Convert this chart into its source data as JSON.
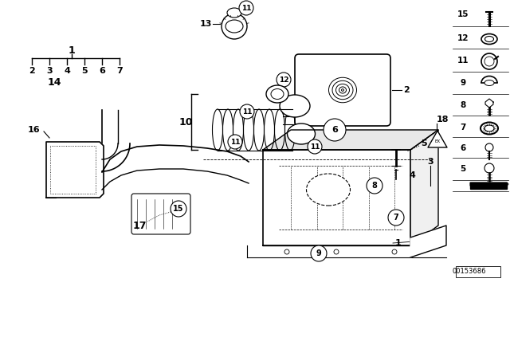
{
  "bg_color": "#ffffff",
  "line_color": "#000000",
  "text_color": "#000000",
  "watermark": "00153686",
  "tree_root": "1",
  "tree_children": [
    "2",
    "3",
    "4",
    "5",
    "6",
    "7"
  ],
  "right_panel_labels": [
    "15",
    "12",
    "11",
    "9",
    "8",
    "7",
    "6",
    "5"
  ],
  "labels_plain": [
    "1",
    "2",
    "3",
    "4",
    "5",
    "13",
    "14",
    "18",
    "10",
    "16",
    "17"
  ],
  "labels_circle": [
    "6",
    "7",
    "8",
    "9",
    "11",
    "12",
    "15"
  ]
}
